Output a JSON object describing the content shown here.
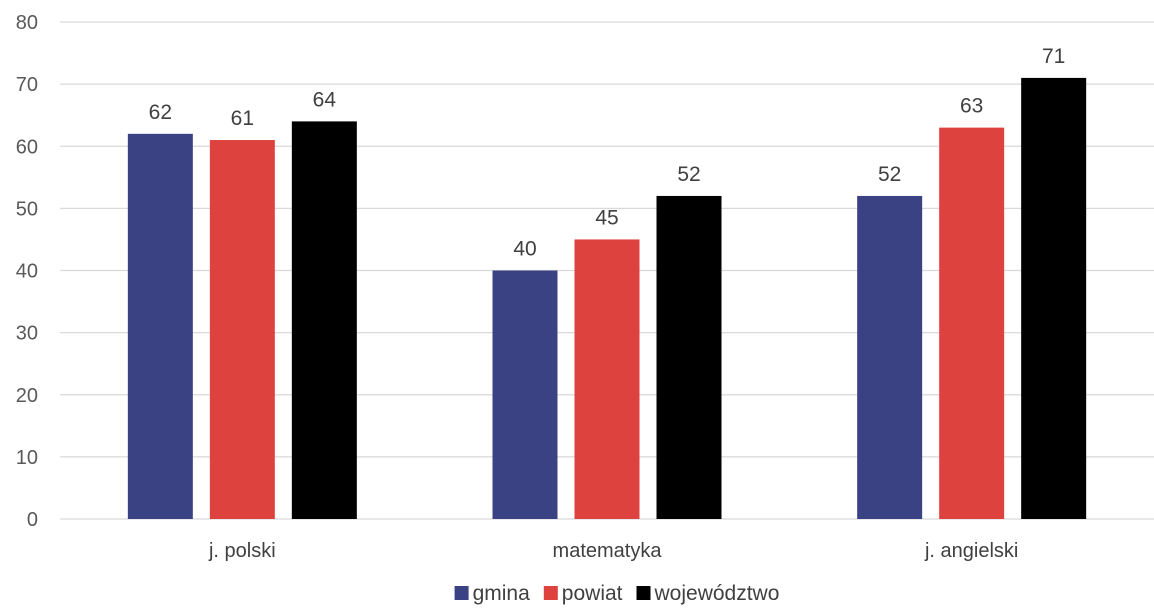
{
  "chart_data": {
    "type": "bar",
    "categories": [
      "j. polski",
      "matematyka",
      "j. angielski"
    ],
    "series": [
      {
        "name": "gmina",
        "color": "#3a4284",
        "values": [
          62,
          40,
          52
        ]
      },
      {
        "name": "powiat",
        "color": "#de423e",
        "values": [
          61,
          45,
          63
        ]
      },
      {
        "name": "województwo",
        "color": "#000000",
        "values": [
          64,
          52,
          71
        ]
      }
    ],
    "ylim": [
      0,
      80
    ],
    "yticks": [
      0,
      10,
      20,
      30,
      40,
      50,
      60,
      70,
      80
    ],
    "grid": true,
    "legend": "bottom",
    "data_labels": true
  }
}
